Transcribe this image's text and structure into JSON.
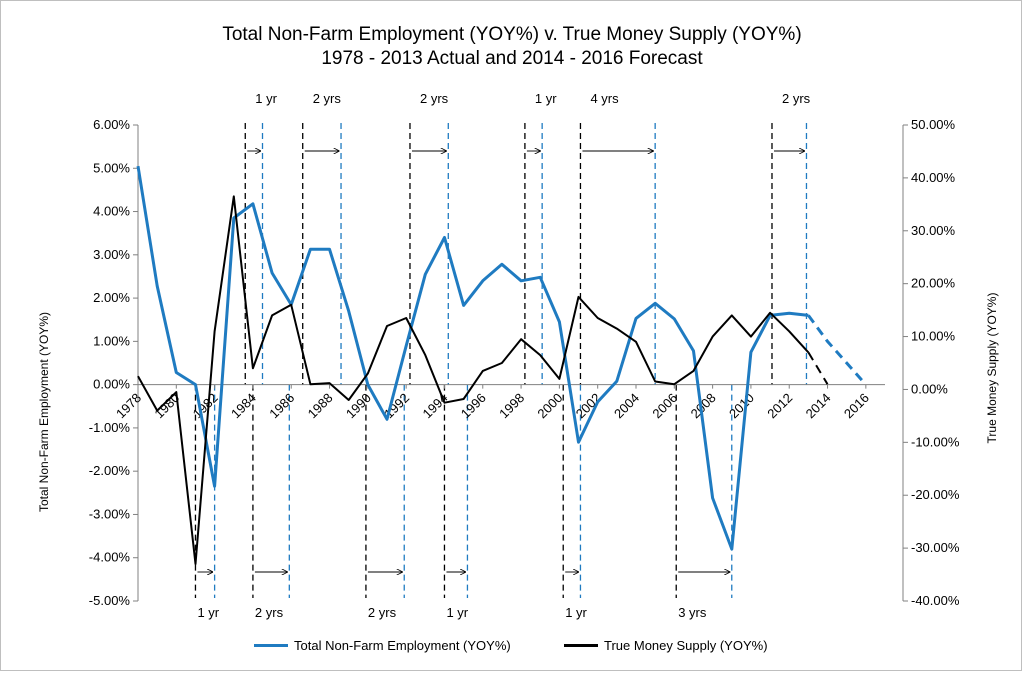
{
  "chart_data": {
    "type": "line",
    "title": "Total Non-Farm Employment (YOY%) v. True Money Supply (YOY%)",
    "subtitle": "1978 - 2013 Actual and 2014 - 2016 Forecast",
    "ylabel": "Total Non-Farm Employment (YOY%)",
    "y2label": "True Money Supply (YOY%)",
    "xlim": [
      1978,
      2017
    ],
    "ylim": [
      -0.05,
      0.06
    ],
    "y2lim": [
      -0.4,
      0.5
    ],
    "x_ticks": [
      "1978",
      "1980",
      "1982",
      "1984",
      "1986",
      "1988",
      "1990",
      "1992",
      "1994",
      "1996",
      "1998",
      "2000",
      "2002",
      "2004",
      "2006",
      "2008",
      "2010",
      "2012",
      "2014",
      "2016"
    ],
    "y_ticks": [
      "6.00%",
      "5.00%",
      "4.00%",
      "3.00%",
      "2.00%",
      "1.00%",
      "0.00%",
      "-1.00%",
      "-2.00%",
      "-3.00%",
      "-4.00%",
      "-5.00%"
    ],
    "y2_ticks": [
      "50.00%",
      "40.00%",
      "30.00%",
      "20.00%",
      "10.00%",
      "0.00%",
      "-10.00%",
      "-20.00%",
      "-30.00%",
      "-40.00%"
    ],
    "legend_position": "bottom",
    "grid": false,
    "series": [
      {
        "name": "Total Non-Farm Employment (YOY%)",
        "axis": "left",
        "color": "#1f7bc1",
        "x": [
          1978,
          1979,
          1980,
          1981,
          1982,
          1983,
          1984,
          1985,
          1986,
          1987,
          1988,
          1989,
          1990,
          1991,
          1992,
          1993,
          1994,
          1995,
          1996,
          1997,
          1998,
          1999,
          2000,
          2001,
          2002,
          2003,
          2004,
          2005,
          2006,
          2007,
          2008,
          2009,
          2010,
          2011,
          2012,
          2013
        ],
        "values": [
          0.0505,
          0.0228,
          0.0028,
          0.0,
          -0.0235,
          0.0385,
          0.0418,
          0.0258,
          0.0185,
          0.0313,
          0.0313,
          0.017,
          0.0,
          -0.008,
          0.009,
          0.0255,
          0.034,
          0.0183,
          0.024,
          0.0278,
          0.024,
          0.0248,
          0.0145,
          -0.0133,
          -0.004,
          0.0008,
          0.0153,
          0.0188,
          0.0152,
          0.0078,
          -0.0262,
          -0.038,
          0.0075,
          0.016,
          0.0165,
          0.016
        ],
        "forecast_x": [
          2013,
          2014,
          2015,
          2016
        ],
        "forecast_values": [
          0.016,
          0.01,
          0.005,
          0.0
        ]
      },
      {
        "name": "True Money Supply (YOY%)",
        "axis": "right",
        "color": "#000000",
        "x": [
          1978,
          1979,
          1980,
          1981,
          1982,
          1983,
          1984,
          1985,
          1986,
          1987,
          1988,
          1989,
          1990,
          1991,
          1992,
          1993,
          1994,
          1995,
          1996,
          1997,
          1998,
          1999,
          2000,
          2001,
          2002,
          2003,
          2004,
          2005,
          2006,
          2007,
          2008,
          2009,
          2010,
          2011,
          2012,
          2013
        ],
        "values": [
          0.025,
          -0.04,
          -0.005,
          -0.33,
          0.11,
          0.365,
          0.04,
          0.14,
          0.16,
          0.01,
          0.012,
          -0.02,
          0.03,
          0.12,
          0.135,
          0.065,
          -0.025,
          -0.018,
          0.035,
          0.05,
          0.095,
          0.065,
          0.02,
          0.175,
          0.135,
          0.115,
          0.09,
          0.015,
          0.01,
          0.035,
          0.1,
          0.14,
          0.1,
          0.145,
          0.11,
          0.07
        ],
        "forecast_x": [
          2013,
          2014
        ],
        "forecast_values": [
          0.07,
          0.01
        ]
      }
    ],
    "annotations": [
      {
        "label": "1 yr",
        "position": "top",
        "from": 1983.6,
        "to": 1984.5
      },
      {
        "label": "2 yrs",
        "position": "top",
        "from": 1986.6,
        "to": 1988.6
      },
      {
        "label": "2 yrs",
        "position": "top",
        "from": 1992.2,
        "to": 1994.2
      },
      {
        "label": "1 yr",
        "position": "top",
        "from": 1998.2,
        "to": 1999.1
      },
      {
        "label": "4 yrs",
        "position": "top",
        "from": 2001.1,
        "to": 2005.0
      },
      {
        "label": "2 yrs",
        "position": "top",
        "from": 2011.1,
        "to": 2012.9
      },
      {
        "label": "1 yr",
        "position": "bottom",
        "from": 1981.0,
        "to": 1982.0
      },
      {
        "label": "2 yrs",
        "position": "bottom",
        "from": 1984.0,
        "to": 1985.9
      },
      {
        "label": "2 yrs",
        "position": "bottom",
        "from": 1989.9,
        "to": 1991.9
      },
      {
        "label": "1 yr",
        "position": "bottom",
        "from": 1994.0,
        "to": 1995.2
      },
      {
        "label": "1 yr",
        "position": "bottom",
        "from": 2000.2,
        "to": 2001.1
      },
      {
        "label": "3 yrs",
        "position": "bottom",
        "from": 2006.1,
        "to": 2009.0
      }
    ]
  }
}
